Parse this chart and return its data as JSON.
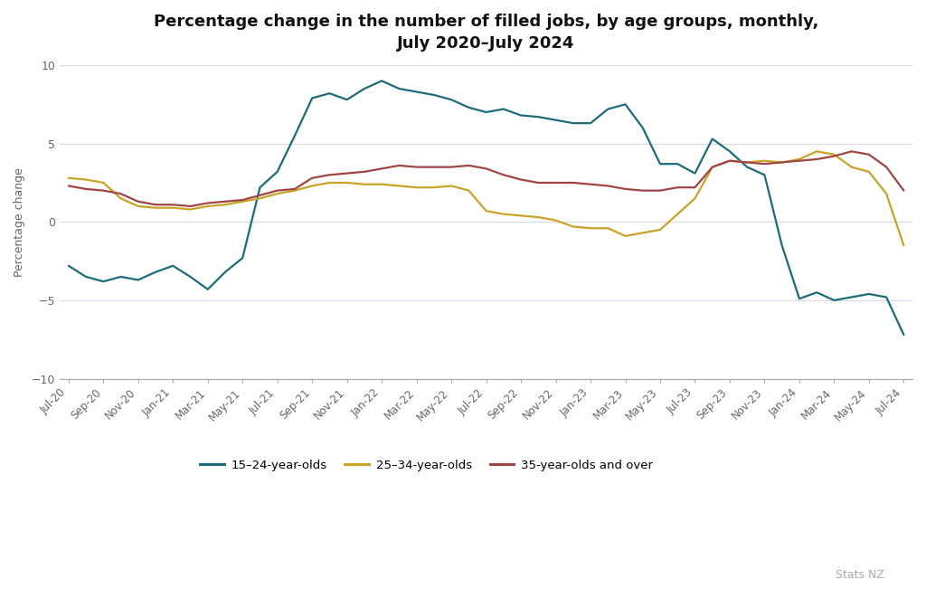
{
  "title": "Percentage change in the number of filled jobs, by age groups, monthly,\nJuly 2020–July 2024",
  "ylabel": "Percentage change",
  "background_color": "#ffffff",
  "plot_bg_color": "#ffffff",
  "grid_color": "#d8dce8",
  "ylim": [
    -10,
    10
  ],
  "yticks": [
    -10,
    -5,
    0,
    5,
    10
  ],
  "tick_labels": [
    "Jul-20",
    "Sep-20",
    "Nov-20",
    "Jan-21",
    "Mar-21",
    "May-21",
    "Jul-21",
    "Sep-21",
    "Nov-21",
    "Jan-22",
    "Mar-22",
    "May-22",
    "Jul-22",
    "Sep-22",
    "Nov-22",
    "Jan-23",
    "Mar-23",
    "May-23",
    "Jul-23",
    "Sep-23",
    "Nov-23",
    "Jan-24",
    "Mar-24",
    "May-24",
    "Jul-24"
  ],
  "s1_color": "#1d6b78",
  "s2_color": "#c9a227",
  "s3_color": "#a04545",
  "s1_label": "15–24-year-olds",
  "s2_label": "25–34-year-olds",
  "s3_label": "35-year-olds and over",
  "s1": [
    -2.8,
    -3.5,
    -3.8,
    -3.5,
    -3.7,
    -3.2,
    -2.8,
    -3.5,
    -4.3,
    -3.2,
    -2.3,
    2.2,
    3.2,
    5.5,
    7.9,
    8.2,
    7.8,
    8.5,
    9.0,
    8.5,
    8.3,
    8.1,
    7.8,
    7.3,
    7.0,
    7.2,
    6.8,
    6.7,
    6.5,
    6.3,
    6.3,
    7.2,
    7.5,
    6.0,
    3.7,
    3.7,
    3.1,
    5.3,
    4.5,
    3.5,
    3.0,
    -1.5,
    -4.9,
    -4.5,
    -5.0,
    -4.8,
    -4.6,
    -4.8,
    -7.2
  ],
  "s2": [
    2.8,
    2.7,
    2.5,
    1.5,
    1.0,
    0.9,
    0.9,
    0.8,
    1.0,
    1.1,
    1.3,
    1.5,
    1.8,
    2.0,
    2.3,
    2.5,
    2.5,
    2.4,
    2.4,
    2.3,
    2.2,
    2.2,
    2.3,
    2.0,
    0.7,
    0.5,
    0.4,
    0.3,
    0.1,
    -0.3,
    -0.4,
    -0.4,
    -0.9,
    -0.7,
    -0.5,
    0.5,
    1.5,
    3.5,
    3.9,
    3.8,
    3.9,
    3.8,
    4.0,
    4.5,
    4.3,
    3.5,
    3.2,
    1.8,
    -1.5
  ],
  "s3": [
    2.3,
    2.1,
    2.0,
    1.8,
    1.3,
    1.1,
    1.1,
    1.0,
    1.2,
    1.3,
    1.4,
    1.7,
    2.0,
    2.1,
    2.8,
    3.0,
    3.1,
    3.2,
    3.4,
    3.6,
    3.5,
    3.5,
    3.5,
    3.6,
    3.4,
    3.0,
    2.7,
    2.5,
    2.5,
    2.5,
    2.4,
    2.3,
    2.1,
    2.0,
    2.0,
    2.2,
    2.2,
    3.5,
    3.9,
    3.8,
    3.7,
    3.8,
    3.9,
    4.0,
    4.2,
    4.5,
    4.3,
    3.5,
    2.0
  ]
}
